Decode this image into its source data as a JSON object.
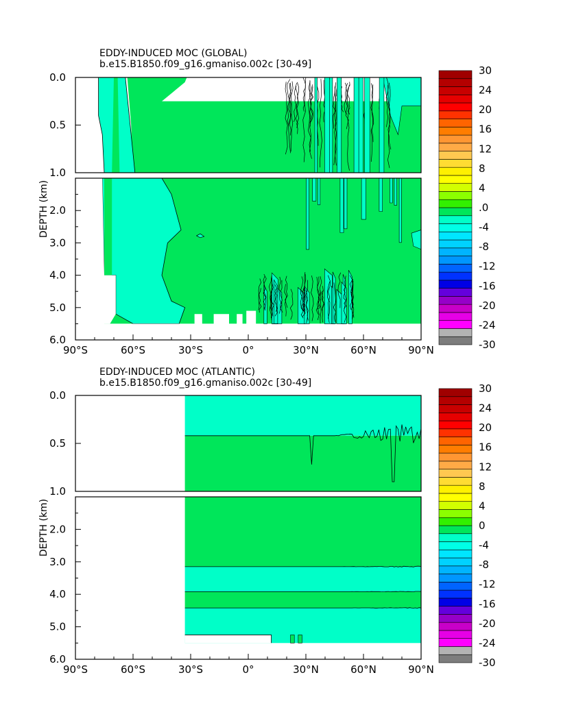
{
  "colors": {
    "background": "#ffffff",
    "neg_fill": "#00ffc8",
    "pos_fill": "#00e65a",
    "contour": "#000000"
  },
  "colorbar_fills": [
    "#7d7d7d",
    "#b3b3b3",
    "#ff00ff",
    "#e600e6",
    "#c800c8",
    "#9600c8",
    "#6400dc",
    "#0000e6",
    "#0032ff",
    "#0064ff",
    "#0096ff",
    "#00b4ff",
    "#00d2ff",
    "#00e6ff",
    "#00ffe6",
    "#00ffc8",
    "#00e65a",
    "#32f000",
    "#8cff00",
    "#d2ff00",
    "#ffff00",
    "#fff000",
    "#ffdc32",
    "#ffc850",
    "#ffaa46",
    "#ff9632",
    "#ff7d00",
    "#ff6400",
    "#ff3200",
    "#ff0000",
    "#e60000",
    "#c80000",
    "#b40000",
    "#a00000"
  ],
  "chart_data": [
    {
      "type": "heatmap",
      "name": "global",
      "title": "EDDY-INDUCED MOC (GLOBAL)",
      "subtitle": "b.e15.B1850.f09_g16.gmaniso.002c [30-49]",
      "ylabel": "DEPTH (km)",
      "xlim": [
        -90,
        90
      ],
      "ylim": [
        6.0,
        0.0
      ],
      "upper_panel_depth_range": [
        0.0,
        1.0
      ],
      "lower_panel_depth_range": [
        1.0,
        6.0
      ],
      "xticks": [
        "90°S",
        "60°S",
        "30°S",
        "0°",
        "30°N",
        "60°N",
        "90°N"
      ],
      "yticks_upper": [
        "0.0",
        "0.5",
        "1.0"
      ],
      "yticks_lower": [
        "2.0",
        "3.0",
        "4.0",
        "5.0",
        "6.0"
      ],
      "colorbar_labels": [
        "30",
        "24",
        "20",
        "16",
        "12",
        "8",
        "4",
        ".0",
        "-4",
        "-8",
        "-12",
        "-16",
        "-20",
        "-24",
        "-30"
      ],
      "regions": {
        "upper": {
          "neg": [
            [
              -78,
              0
            ],
            [
              -78,
              0.4
            ],
            [
              -76,
              0.6
            ],
            [
              -75,
              1.0
            ],
            [
              -59,
              1.0
            ],
            [
              -61,
              0.6
            ],
            [
              -63,
              0.2
            ],
            [
              -64,
              0
            ]
          ],
          "pos": [
            [
              -63,
              0
            ],
            [
              -61,
              0.5
            ],
            [
              -60,
              1.0
            ],
            [
              90,
              1.0
            ],
            [
              90,
              0.25
            ],
            [
              -45,
              0.25
            ],
            [
              -33,
              0.05
            ],
            [
              -32,
              0
            ]
          ],
          "neg_right": [
            [
              -45,
              0
            ],
            [
              90,
              0
            ],
            [
              90,
              0.2
            ],
            [
              -45,
              0.2
            ]
          ]
        },
        "lower": {
          "neg": [
            [
              -76,
              1.0
            ],
            [
              -75,
              4.0
            ],
            [
              -69,
              4.0
            ],
            [
              -69,
              5.2
            ],
            [
              -60,
              5.5
            ],
            [
              -36,
              5.5
            ],
            [
              -33,
              5.0
            ],
            [
              -40,
              4.8
            ],
            [
              -45,
              4.0
            ],
            [
              -42,
              3.0
            ],
            [
              -35,
              2.6
            ],
            [
              -40,
              1.5
            ],
            [
              -45,
              1.0
            ]
          ],
          "pos_bottom": [
            [
              -75,
              1.0
            ],
            [
              -75,
              4.0
            ],
            [
              -71,
              4.0
            ],
            [
              -71,
              1.0
            ]
          ]
        }
      }
    },
    {
      "type": "heatmap",
      "name": "atlantic",
      "title": "EDDY-INDUCED MOC (ATLANTIC)",
      "subtitle": "b.e15.B1850.f09_g16.gmaniso.002c [30-49]",
      "ylabel": "DEPTH (km)",
      "xlim": [
        -90,
        90
      ],
      "ylim": [
        6.0,
        0.0
      ],
      "upper_panel_depth_range": [
        0.0,
        1.0
      ],
      "lower_panel_depth_range": [
        1.0,
        6.0
      ],
      "xticks": [
        "90°S",
        "60°S",
        "30°S",
        "0°",
        "30°N",
        "60°N",
        "90°N"
      ],
      "yticks_upper": [
        "0.0",
        "0.5",
        "1.0"
      ],
      "yticks_lower": [
        "2.0",
        "3.0",
        "4.0",
        "5.0",
        "6.0"
      ],
      "colorbar_labels": [
        "30",
        "24",
        "20",
        "16",
        "12",
        "8",
        "4",
        "0",
        "-4",
        "-8",
        "-12",
        "-16",
        "-20",
        "-24",
        "-30"
      ],
      "data_start_lon": -33,
      "layers": [
        {
          "from": 0.0,
          "to": 0.42,
          "sign": "neg"
        },
        {
          "from": 0.42,
          "to": 3.15,
          "sign": "pos"
        },
        {
          "from": 3.15,
          "to": 3.92,
          "sign": "neg"
        },
        {
          "from": 3.92,
          "to": 4.42,
          "sign": "pos"
        },
        {
          "from": 4.42,
          "to": 5.5,
          "sign": "neg"
        }
      ],
      "bottom_depth_south": 5.25,
      "bottom_depth_north": 5.5,
      "bottom_step_lon": 12
    }
  ]
}
